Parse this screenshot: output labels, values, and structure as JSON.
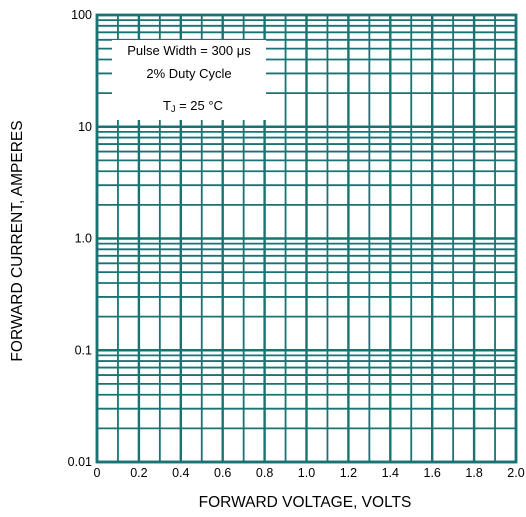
{
  "chart_data": {
    "type": "line",
    "title": "",
    "xlabel": "FORWARD VOLTAGE, VOLTS",
    "ylabel": "FORWARD CURRENT, AMPERES",
    "xlim": [
      0,
      2.0
    ],
    "ylim": [
      0.01,
      100
    ],
    "yscale": "log",
    "x_ticks": [
      0,
      0.2,
      0.4,
      0.6,
      0.8,
      1.0,
      1.2,
      1.4,
      1.6,
      1.8,
      2.0
    ],
    "x_tick_labels": [
      "0",
      "0.2",
      "0.4",
      "0.6",
      "0.8",
      "1.0",
      "1.2",
      "1.4",
      "1.6",
      "1.8",
      "2.0"
    ],
    "y_ticks": [
      0.01,
      0.1,
      1.0,
      10,
      100
    ],
    "y_tick_labels": [
      "0.01",
      "0.1",
      "1.0",
      "10",
      "100"
    ],
    "grid": true,
    "grid_color": "#1a7373",
    "series": [],
    "annotations": {
      "line1": "Pulse Width = 300 μs",
      "line2": "2% Duty Cycle",
      "line3_prefix": "T",
      "line3_sub": "J",
      "line3_rest": " = 25 °C"
    }
  }
}
